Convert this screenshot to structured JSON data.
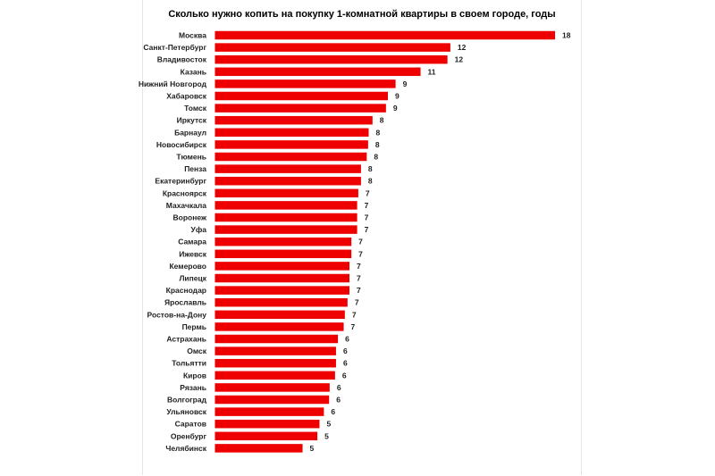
{
  "chart_data": {
    "type": "bar",
    "orientation": "horizontal",
    "title": "Сколько нужно копить на покупку 1-комнатной квартиры в своем городе, годы",
    "xlabel": "",
    "ylabel": "",
    "grid": false,
    "legend": "none",
    "bar_color": "#ee0000",
    "xlim": [
      0,
      18.5
    ],
    "categories": [
      "Москва",
      "Санкт-Петербург",
      "Владивосток",
      "Казань",
      "Нижний Новгород",
      "Хабаровск",
      "Томск",
      "Иркутск",
      "Барнаул",
      "Новосибирск",
      "Тюмень",
      "Пенза",
      "Екатеринбург",
      "Красноярск",
      "Махачкала",
      "Воронеж",
      "Уфа",
      "Самара",
      "Ижевск",
      "Кемерово",
      "Липецк",
      "Краснодар",
      "Ярославль",
      "Ростов-на-Дону",
      "Пермь",
      "Астрахань",
      "Омск",
      "Тольятти",
      "Киров",
      "Рязань",
      "Волгоград",
      "Ульяновск",
      "Саратов",
      "Оренбург",
      "Челябинск"
    ],
    "values": [
      17.7,
      12.25,
      12.1,
      10.7,
      9.4,
      9.0,
      8.9,
      8.2,
      8.0,
      7.97,
      7.9,
      7.6,
      7.6,
      7.46,
      7.4,
      7.4,
      7.4,
      7.1,
      7.1,
      7.0,
      7.0,
      7.0,
      6.9,
      6.76,
      6.7,
      6.4,
      6.3,
      6.3,
      6.25,
      5.97,
      5.94,
      5.67,
      5.44,
      5.33,
      4.56
    ],
    "data_labels": [
      "18",
      "12",
      "12",
      "11",
      "9",
      "9",
      "9",
      "8",
      "8",
      "8",
      "8",
      "8",
      "8",
      "7",
      "7",
      "7",
      "7",
      "7",
      "7",
      "7",
      "7",
      "7",
      "7",
      "7",
      "7",
      "6",
      "6",
      "6",
      "6",
      "6",
      "6",
      "6",
      "5",
      "5",
      "5"
    ]
  }
}
